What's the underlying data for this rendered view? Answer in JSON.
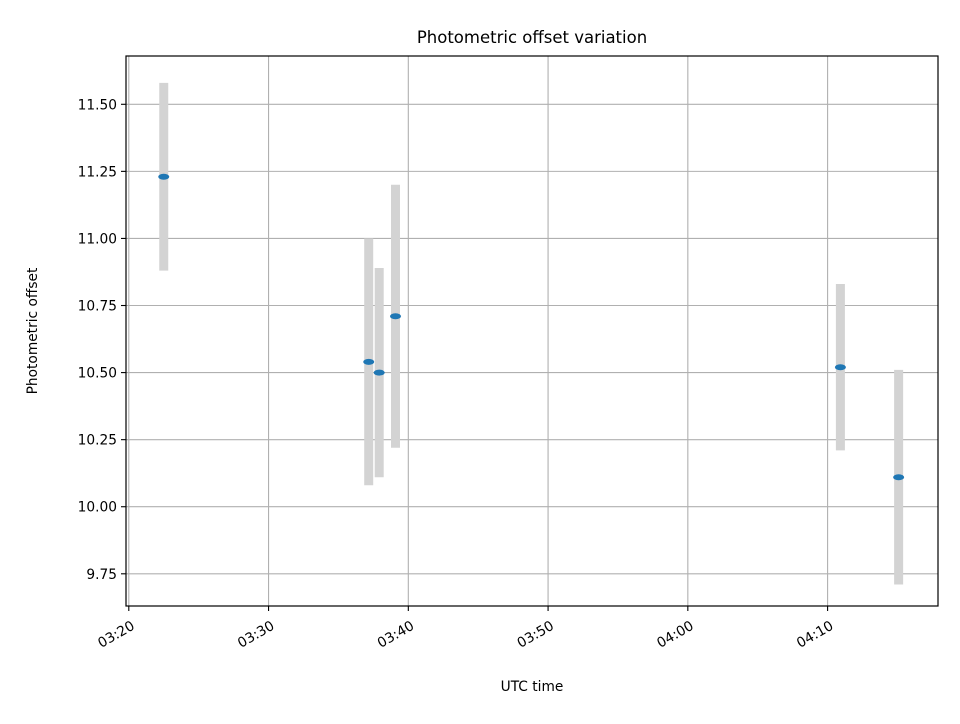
{
  "chart_data": {
    "type": "scatter",
    "title": "Photometric offset variation",
    "xlabel": "UTC time",
    "ylabel": "Photometric offset",
    "x_tick_labels": [
      "03:20",
      "03:30",
      "03:40",
      "03:50",
      "04:00",
      "04:10"
    ],
    "x_tick_minutes": [
      200,
      210,
      220,
      230,
      240,
      250
    ],
    "xlim_minutes": [
      199.8,
      257.9
    ],
    "y_tick_labels": [
      "9.75",
      "10.00",
      "10.25",
      "10.50",
      "10.75",
      "11.00",
      "11.25",
      "11.50"
    ],
    "y_tick_values": [
      9.75,
      10.0,
      10.25,
      10.5,
      10.75,
      11.0,
      11.25,
      11.5
    ],
    "ylim": [
      9.63,
      11.68
    ],
    "grid": true,
    "series": [
      {
        "marker_color": "#1f77b4",
        "errorbar_color": "#d3d3d3",
        "points": [
          {
            "time": "03:22:30",
            "y": 11.23,
            "yerr": 0.35
          },
          {
            "time": "03:37:10",
            "y": 10.54,
            "yerr": 0.46
          },
          {
            "time": "03:37:55",
            "y": 10.5,
            "yerr": 0.39
          },
          {
            "time": "03:39:05",
            "y": 10.71,
            "yerr": 0.49
          },
          {
            "time": "04:10:55",
            "y": 10.52,
            "yerr": 0.31
          },
          {
            "time": "04:15:05",
            "y": 10.11,
            "yerr": 0.4
          }
        ]
      }
    ]
  }
}
